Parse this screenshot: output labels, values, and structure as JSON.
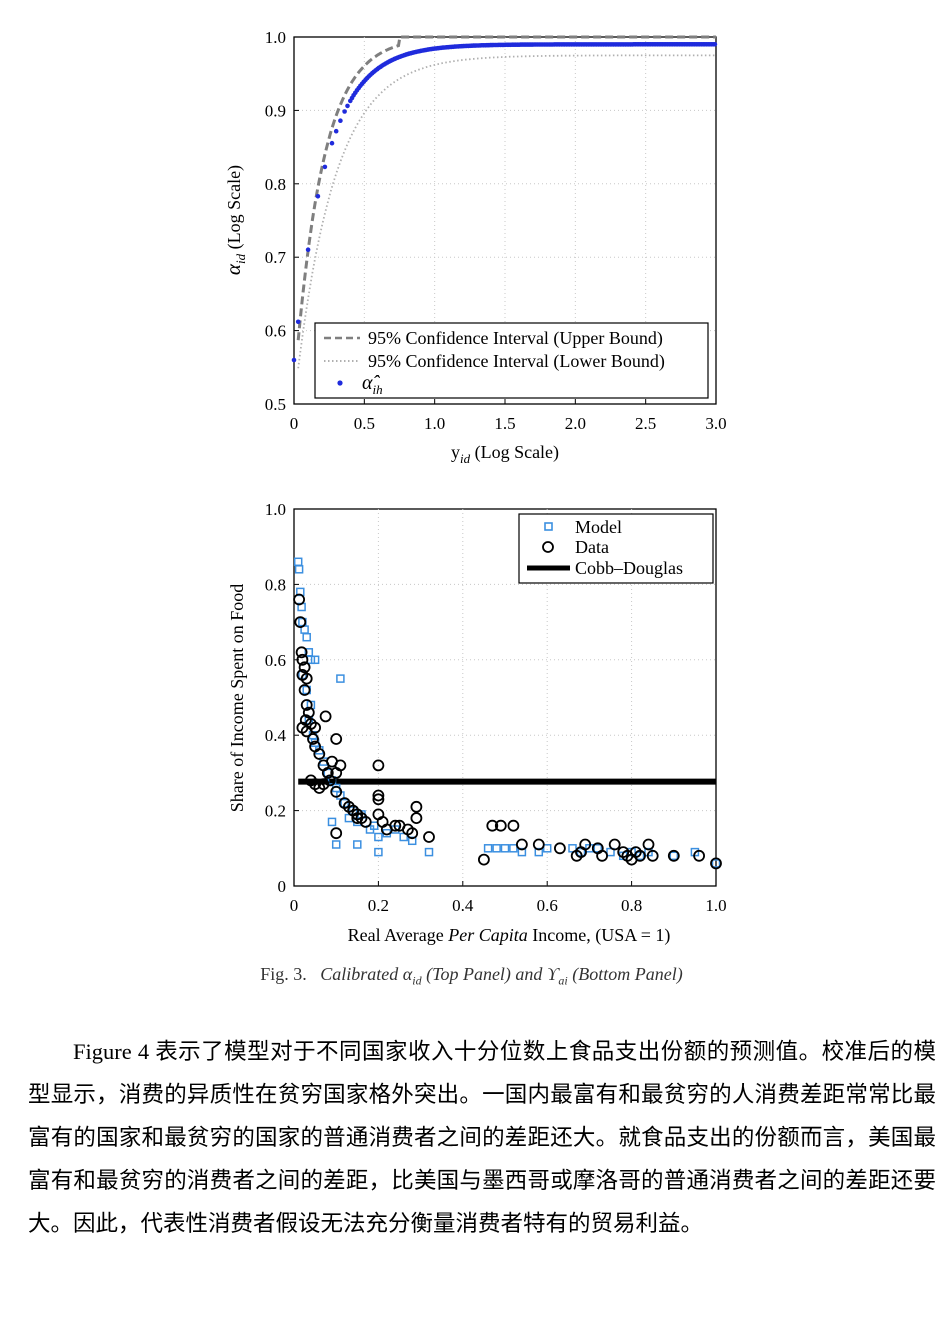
{
  "figure": {
    "top_panel": {
      "chart_data": {
        "type": "scatter",
        "title": "",
        "xlabel_main": "y",
        "xlabel_sub": "id",
        "xlabel_rest": " (Log Scale)",
        "ylabel_main": "α",
        "ylabel_sub": "id",
        "ylabel_rest": " (Log Scale)",
        "xlim": [
          0,
          3.0
        ],
        "ylim": [
          0.5,
          1.0
        ],
        "xticks": [
          "0",
          "0.5",
          "1.0",
          "1.5",
          "2.0",
          "2.5",
          "3.0"
        ],
        "yticks": [
          "0.5",
          "0.6",
          "0.7",
          "0.8",
          "0.9",
          "1.0"
        ],
        "grid": true,
        "legend_position": "bottom-left",
        "series": [
          {
            "name": "95% Confidence Interval (Upper Bound)",
            "style": "dashed",
            "color": "#7f7f7f",
            "model": {
              "asymptote": 1.0,
              "floor": 0.52,
              "rate": 5.0,
              "cap_x": 0.75
            }
          },
          {
            "name": "95% Confidence Interval (Lower Bound)",
            "style": "dotted",
            "color": "#b0b0b0",
            "model": {
              "asymptote": 0.975,
              "floor": 0.5,
              "rate": 3.6
            }
          },
          {
            "name_main": "α̂",
            "name_sub": "ih",
            "style": "points",
            "color": "#1f2bdc",
            "model": {
              "asymptote": 0.99,
              "floor": 0.56,
              "rate": 4.3
            },
            "sparse_x": [
              0.0,
              0.03,
              0.1,
              0.17,
              0.22,
              0.27,
              0.3,
              0.33,
              0.36,
              0.38
            ]
          }
        ]
      }
    },
    "bottom_panel": {
      "chart_data": {
        "type": "scatter",
        "title": "",
        "xlabel_pre": "Real Average ",
        "xlabel_italic": "Per Capita",
        "xlabel_post": " Income, (USA = 1)",
        "ylabel": "Share of Income Spent on Food",
        "xlim": [
          0,
          1.0
        ],
        "ylim": [
          0,
          1.0
        ],
        "xticks": [
          "0",
          "0.2",
          "0.4",
          "0.6",
          "0.8",
          "1.0"
        ],
        "yticks": [
          "0",
          "0.2",
          "0.4",
          "0.6",
          "0.8",
          "1.0"
        ],
        "grid": true,
        "legend_position": "top-right",
        "series": [
          {
            "name": "Model",
            "marker": "square",
            "color": "#3b8fe0",
            "points": [
              [
                0.01,
                0.86
              ],
              [
                0.012,
                0.84
              ],
              [
                0.015,
                0.78
              ],
              [
                0.018,
                0.74
              ],
              [
                0.02,
                0.7
              ],
              [
                0.025,
                0.68
              ],
              [
                0.03,
                0.66
              ],
              [
                0.035,
                0.62
              ],
              [
                0.04,
                0.6
              ],
              [
                0.05,
                0.6
              ],
              [
                0.02,
                0.56
              ],
              [
                0.03,
                0.52
              ],
              [
                0.04,
                0.48
              ],
              [
                0.035,
                0.44
              ],
              [
                0.045,
                0.4
              ],
              [
                0.05,
                0.38
              ],
              [
                0.06,
                0.36
              ],
              [
                0.07,
                0.33
              ],
              [
                0.11,
                0.55
              ],
              [
                0.08,
                0.3
              ],
              [
                0.09,
                0.28
              ],
              [
                0.1,
                0.26
              ],
              [
                0.11,
                0.24
              ],
              [
                0.12,
                0.22
              ],
              [
                0.14,
                0.2
              ],
              [
                0.16,
                0.19
              ],
              [
                0.15,
                0.17
              ],
              [
                0.18,
                0.15
              ],
              [
                0.2,
                0.13
              ],
              [
                0.22,
                0.14
              ],
              [
                0.26,
                0.13
              ],
              [
                0.28,
                0.12
              ],
              [
                0.24,
                0.15
              ],
              [
                0.09,
                0.17
              ],
              [
                0.1,
                0.11
              ],
              [
                0.15,
                0.11
              ],
              [
                0.2,
                0.09
              ],
              [
                0.32,
                0.09
              ],
              [
                0.19,
                0.16
              ],
              [
                0.13,
                0.18
              ],
              [
                0.46,
                0.1
              ],
              [
                0.48,
                0.1
              ],
              [
                0.5,
                0.1
              ],
              [
                0.52,
                0.1
              ],
              [
                0.54,
                0.09
              ],
              [
                0.58,
                0.09
              ],
              [
                0.6,
                0.1
              ],
              [
                0.66,
                0.1
              ],
              [
                0.68,
                0.09
              ],
              [
                0.7,
                0.1
              ],
              [
                0.72,
                0.1
              ],
              [
                0.75,
                0.09
              ],
              [
                0.78,
                0.08
              ],
              [
                0.8,
                0.09
              ],
              [
                0.82,
                0.08
              ],
              [
                0.84,
                0.09
              ],
              [
                0.9,
                0.08
              ],
              [
                0.95,
                0.09
              ],
              [
                1.0,
                0.06
              ]
            ]
          },
          {
            "name": "Data",
            "marker": "circle",
            "color": "#000000",
            "points": [
              [
                0.012,
                0.76
              ],
              [
                0.015,
                0.7
              ],
              [
                0.018,
                0.62
              ],
              [
                0.02,
                0.6
              ],
              [
                0.025,
                0.58
              ],
              [
                0.02,
                0.56
              ],
              [
                0.03,
                0.55
              ],
              [
                0.025,
                0.52
              ],
              [
                0.03,
                0.48
              ],
              [
                0.028,
                0.44
              ],
              [
                0.035,
                0.46
              ],
              [
                0.02,
                0.42
              ],
              [
                0.03,
                0.41
              ],
              [
                0.04,
                0.43
              ],
              [
                0.05,
                0.42
              ],
              [
                0.045,
                0.39
              ],
              [
                0.05,
                0.37
              ],
              [
                0.06,
                0.35
              ],
              [
                0.07,
                0.32
              ],
              [
                0.08,
                0.3
              ],
              [
                0.075,
                0.45
              ],
              [
                0.1,
                0.39
              ],
              [
                0.09,
                0.33
              ],
              [
                0.11,
                0.32
              ],
              [
                0.085,
                0.28
              ],
              [
                0.1,
                0.3
              ],
              [
                0.04,
                0.28
              ],
              [
                0.05,
                0.27
              ],
              [
                0.06,
                0.26
              ],
              [
                0.07,
                0.27
              ],
              [
                0.1,
                0.25
              ],
              [
                0.12,
                0.22
              ],
              [
                0.13,
                0.21
              ],
              [
                0.14,
                0.2
              ],
              [
                0.15,
                0.19
              ],
              [
                0.16,
                0.18
              ],
              [
                0.17,
                0.17
              ],
              [
                0.2,
                0.32
              ],
              [
                0.2,
                0.24
              ],
              [
                0.2,
                0.23
              ],
              [
                0.2,
                0.19
              ],
              [
                0.21,
                0.17
              ],
              [
                0.22,
                0.15
              ],
              [
                0.24,
                0.16
              ],
              [
                0.25,
                0.16
              ],
              [
                0.27,
                0.15
              ],
              [
                0.28,
                0.14
              ],
              [
                0.29,
                0.21
              ],
              [
                0.29,
                0.18
              ],
              [
                0.32,
                0.13
              ],
              [
                0.1,
                0.14
              ],
              [
                0.15,
                0.18
              ],
              [
                0.45,
                0.07
              ],
              [
                0.47,
                0.16
              ],
              [
                0.49,
                0.16
              ],
              [
                0.52,
                0.16
              ],
              [
                0.54,
                0.11
              ],
              [
                0.58,
                0.11
              ],
              [
                0.63,
                0.1
              ],
              [
                0.67,
                0.08
              ],
              [
                0.68,
                0.09
              ],
              [
                0.69,
                0.11
              ],
              [
                0.72,
                0.1
              ],
              [
                0.73,
                0.08
              ],
              [
                0.76,
                0.11
              ],
              [
                0.78,
                0.09
              ],
              [
                0.79,
                0.08
              ],
              [
                0.8,
                0.07
              ],
              [
                0.81,
                0.09
              ],
              [
                0.82,
                0.08
              ],
              [
                0.84,
                0.11
              ],
              [
                0.85,
                0.08
              ],
              [
                0.9,
                0.08
              ],
              [
                0.96,
                0.08
              ],
              [
                1.0,
                0.06
              ]
            ]
          },
          {
            "name": "Cobb–Douglas",
            "marker": "line",
            "color": "#000000",
            "value": 0.277,
            "x_range": [
              0.01,
              1.0
            ]
          }
        ]
      }
    },
    "caption": {
      "prefix": "Fig. 3.",
      "calibrated": "Calibrated",
      "alpha_main": "α",
      "alpha_sub": "id",
      "top_panel_text": "(Top Panel) and",
      "upsilon_main": "ϒ",
      "upsilon_sub": "ai",
      "bottom_panel_text": "(Bottom Panel)"
    }
  },
  "paragraph": "Figure 4 表示了模型对于不同国家收入十分位数上食品支出份额的预测值。校准后的模型显示，消费的异质性在贫穷国家格外突出。一国内最富有和最贫穷的人消费差距常常比最富有的国家和最贫穷的国家的普通消费者之间的差距还大。就食品支出的份额而言，美国最富有和最贫穷的消费者之间的差距，比美国与墨西哥或摩洛哥的普通消费者之间的差距还要大。因此，代表性消费者假设无法充分衡量消费者特有的贸易利益。"
}
